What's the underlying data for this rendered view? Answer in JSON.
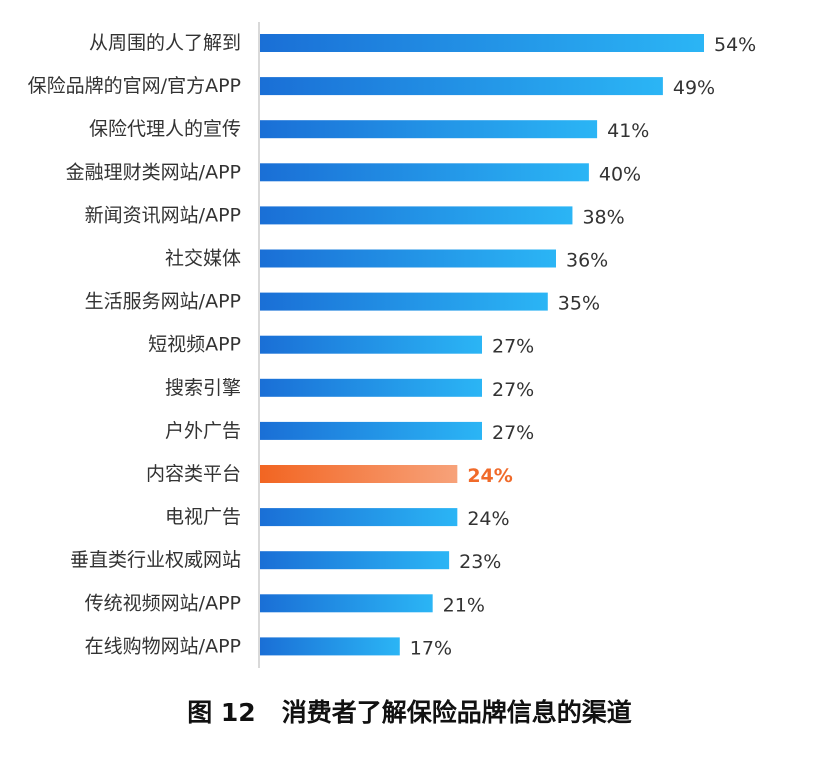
{
  "caption": "图 12   消费者了解保险品牌信息的渠道",
  "colors": {
    "bar_start": "#1a6fd6",
    "bar_end": "#2bb5f5",
    "highlight_start": "#f26522",
    "highlight_end": "#f7a27a",
    "highlight_text": "#f06a2a",
    "axis": "#d9d9d9",
    "text": "#333333"
  },
  "chart_data": {
    "type": "bar",
    "orientation": "horizontal",
    "title": "",
    "xlabel": "",
    "ylabel": "",
    "xlim": [
      0,
      60
    ],
    "grid": false,
    "highlight_index": 10,
    "categories": [
      "从周围的人了解到",
      "保险品牌的官网/官方APP",
      "保险代理人的宣传",
      "金融理财类网站/APP",
      "新闻资讯网站/APP",
      "社交媒体",
      "生活服务网站/APP",
      "短视频APP",
      "搜索引擎",
      "户外广告",
      "内容类平台",
      "电视广告",
      "垂直类行业权威网站",
      "传统视频网站/APP",
      "在线购物网站/APP"
    ],
    "values": [
      54,
      49,
      41,
      40,
      38,
      36,
      35,
      27,
      27,
      27,
      24,
      24,
      23,
      21,
      17
    ],
    "value_labels": [
      "54%",
      "49%",
      "41%",
      "40%",
      "38%",
      "36%",
      "35%",
      "27%",
      "27%",
      "27%",
      "24%",
      "24%",
      "23%",
      "21%",
      "17%"
    ]
  }
}
